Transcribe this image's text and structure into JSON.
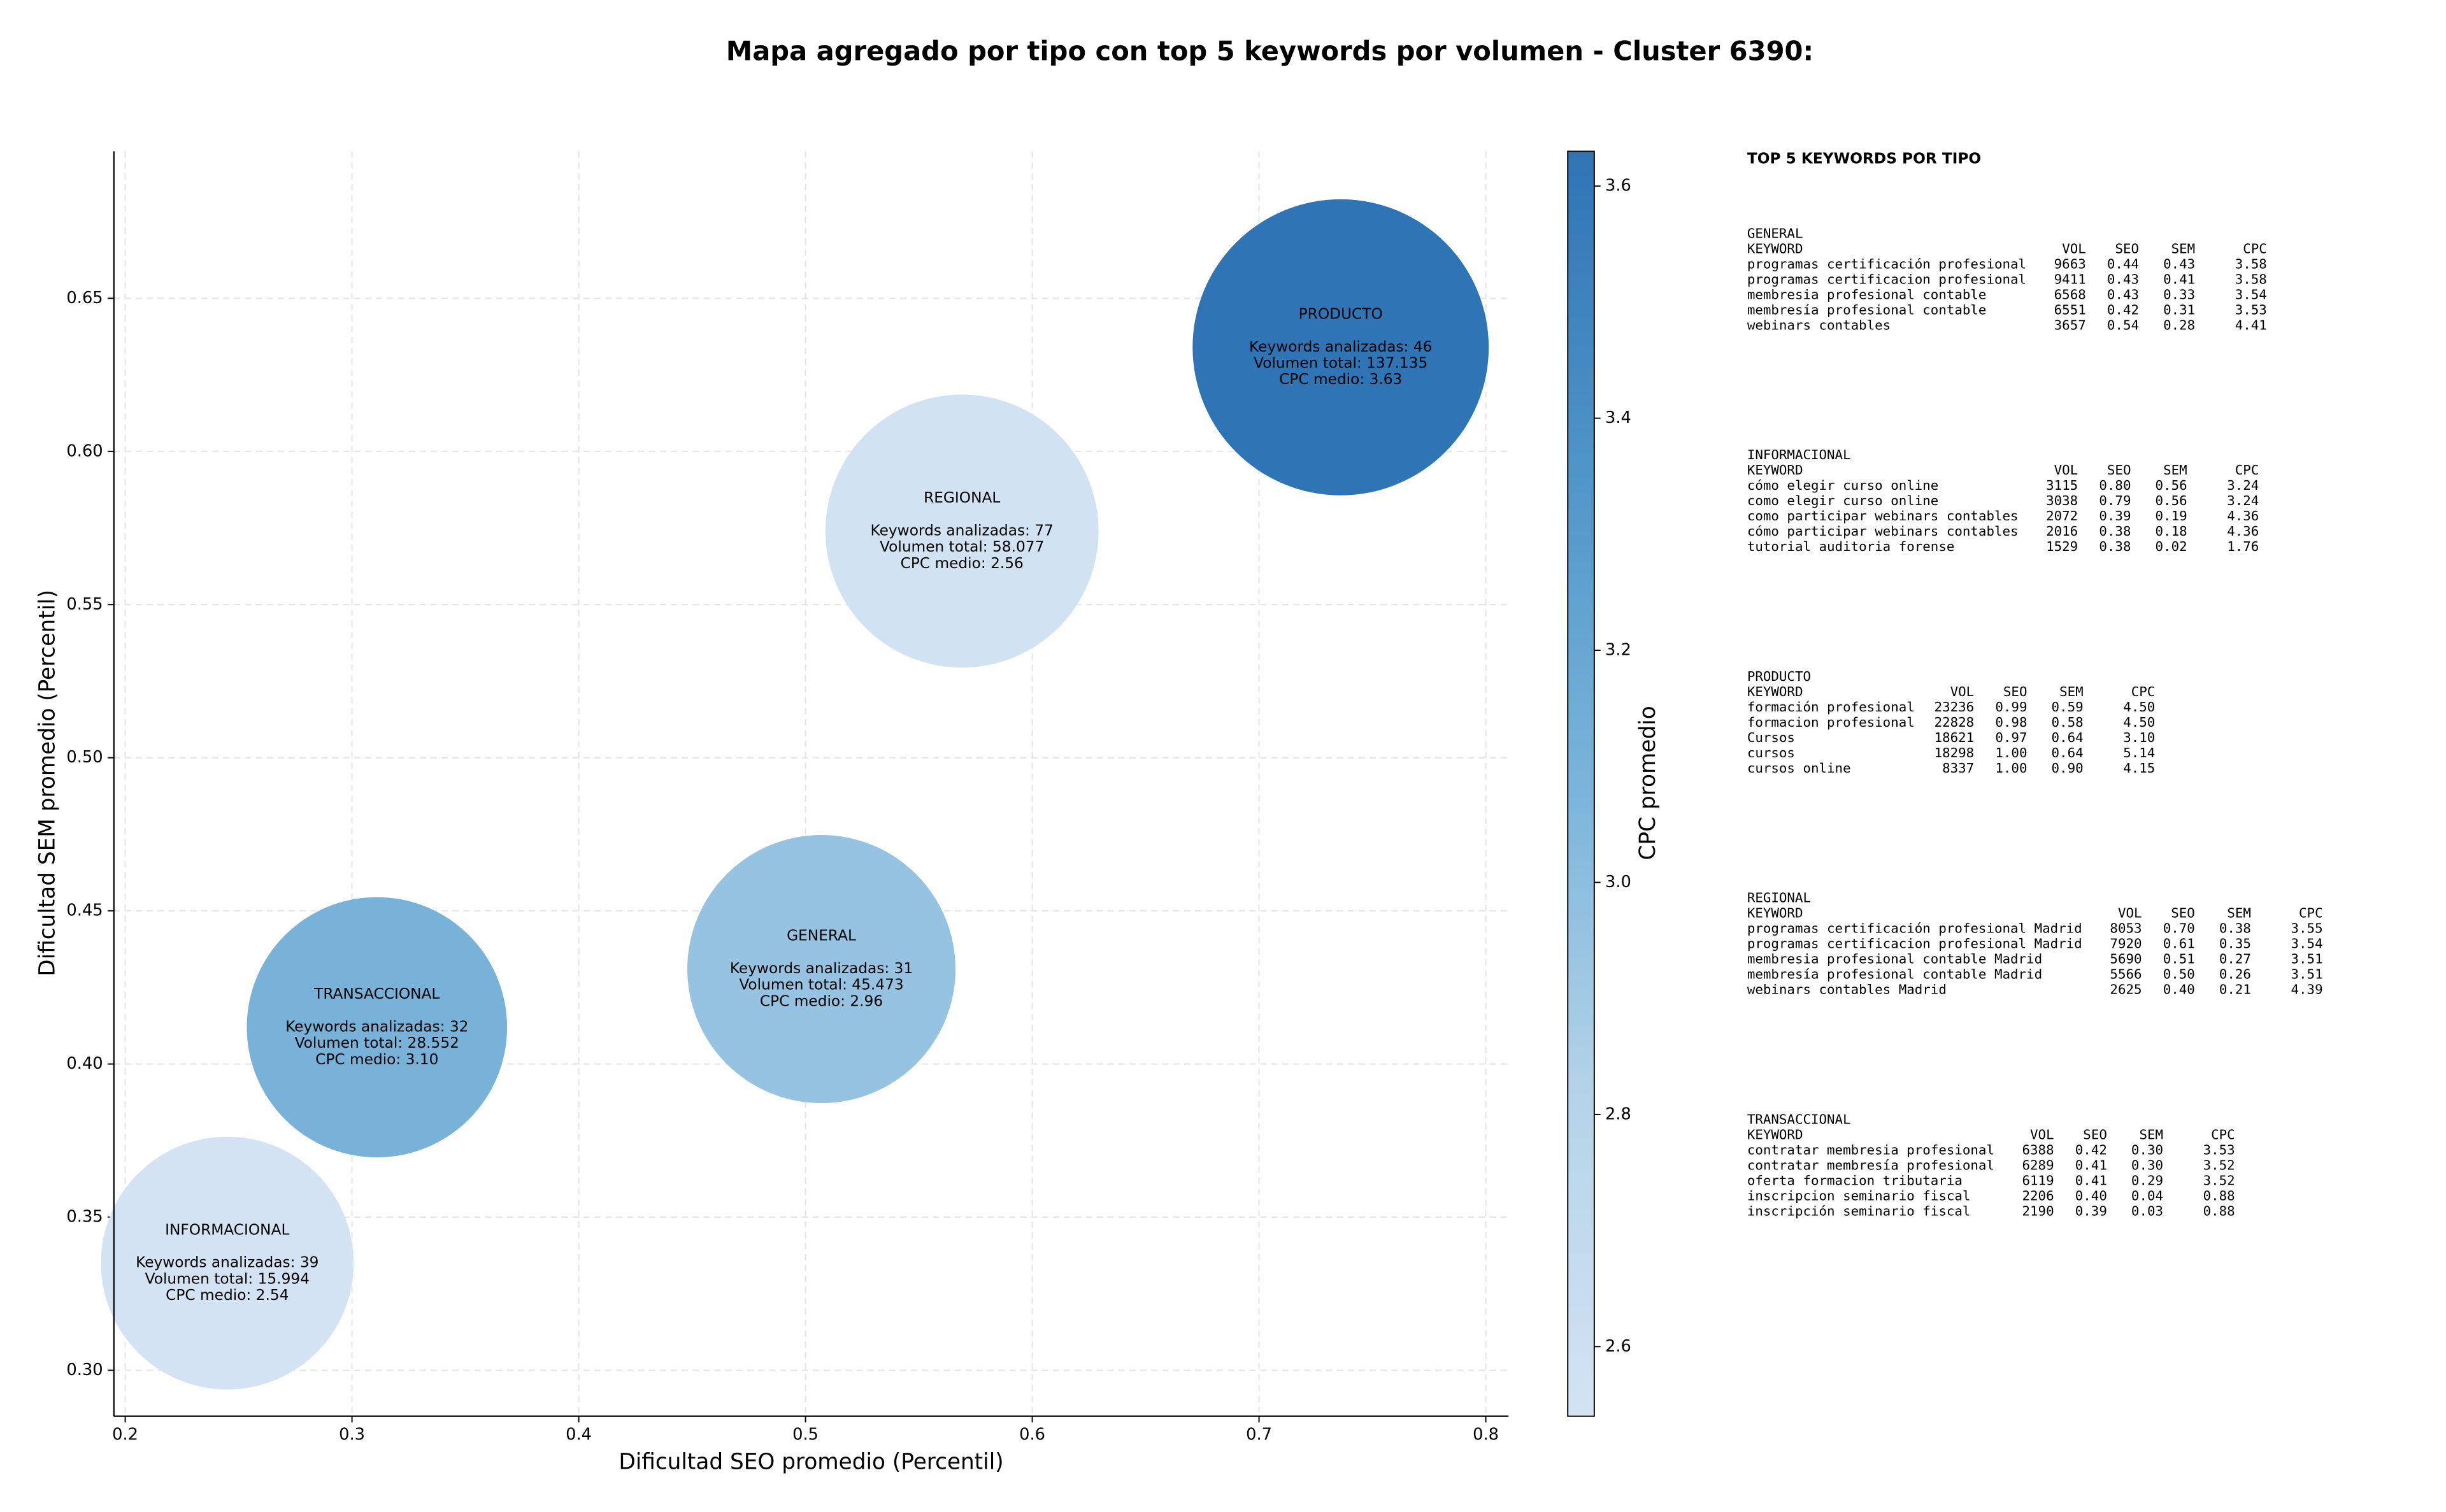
{
  "chart_data": {
    "type": "scatter",
    "title": "Mapa agregado por tipo con top 5 keywords por volumen - Cluster 6390:",
    "xlabel": "Dificultad SEO promedio (Percentil)",
    "ylabel": "Dificultad SEM promedio (Percentil)",
    "xlim": [
      0.195,
      0.81
    ],
    "ylim": [
      0.285,
      0.698
    ],
    "xticks": [
      0.2,
      0.3,
      0.4,
      0.5,
      0.6,
      0.7,
      0.8
    ],
    "yticks": [
      {
        "value": 0.3,
        "label": "0.30"
      },
      0.35,
      {
        "value": 0.4,
        "label": "0.40"
      },
      0.45,
      {
        "value": 0.5,
        "label": "0.50"
      },
      0.55,
      {
        "value": 0.6,
        "label": "0.60"
      },
      0.65
    ],
    "grid": true,
    "categories": [
      "GENERAL",
      "INFORMACIONAL",
      "PRODUCTO",
      "REGIONAL",
      "TRANSACCIONAL"
    ],
    "x": [
      0.507,
      0.245,
      0.736,
      0.569,
      0.311
    ],
    "values": [
      0.431,
      0.335,
      0.634,
      0.574,
      0.412
    ],
    "sizes": [
      45473,
      15994,
      137135,
      58077,
      28552
    ],
    "cpc": [
      2.96,
      2.54,
      3.63,
      2.56,
      3.1
    ],
    "annotations": [
      [
        "Keywords analizadas: 31",
        "Volumen total: 45.473",
        "CPC medio: 2.96"
      ],
      [
        "Keywords analizadas: 39",
        "Volumen total: 15.994",
        "CPC medio: 2.54"
      ],
      [
        "Keywords analizadas: 46",
        "Volumen total: 137.135",
        "CPC medio: 3.63"
      ],
      [
        "Keywords analizadas: 77",
        "Volumen total: 58.077",
        "CPC medio: 2.56"
      ],
      [
        "Keywords analizadas: 32",
        "Volumen total: 28.552",
        "CPC medio: 3.10"
      ]
    ],
    "colorbar": {
      "label": "CPC promedio",
      "lim": [
        2.54,
        3.63
      ],
      "ticks": [
        2.6,
        2.8,
        {
          "value": 3,
          "label": "3.0"
        },
        3.2,
        3.4,
        3.6
      ],
      "colormap": [
        "#d3e3f3",
        "#b5d4e9",
        "#7ab4da",
        "#4e95c8",
        "#2f74b5"
      ]
    }
  },
  "table": {
    "title": "TOP 5 KEYWORDS POR TIPO",
    "columns": [
      "KEYWORD",
      "VOL",
      "SEO",
      "SEM",
      "CPC"
    ],
    "sections": [
      {
        "name": "GENERAL",
        "rows": [
          [
            "programas certificación profesional",
            "9663",
            "0.44",
            "0.43",
            "3.58"
          ],
          [
            "programas certificacion profesional",
            "9411",
            "0.43",
            "0.41",
            "3.58"
          ],
          [
            "membresia profesional contable",
            "6568",
            "0.43",
            "0.33",
            "3.54"
          ],
          [
            "membresía profesional contable",
            "6551",
            "0.42",
            "0.31",
            "3.53"
          ],
          [
            "webinars contables",
            "3657",
            "0.54",
            "0.28",
            "4.41"
          ]
        ]
      },
      {
        "name": "INFORMACIONAL",
        "rows": [
          [
            "cómo elegir curso online",
            "3115",
            "0.80",
            "0.56",
            "3.24"
          ],
          [
            "como elegir curso online",
            "3038",
            "0.79",
            "0.56",
            "3.24"
          ],
          [
            "como participar webinars contables",
            "2072",
            "0.39",
            "0.19",
            "4.36"
          ],
          [
            "cómo participar webinars contables",
            "2016",
            "0.38",
            "0.18",
            "4.36"
          ],
          [
            "tutorial auditoria forense",
            "1529",
            "0.38",
            "0.02",
            "1.76"
          ]
        ]
      },
      {
        "name": "PRODUCTO",
        "rows": [
          [
            "formación profesional",
            "23236",
            "0.99",
            "0.59",
            "4.50"
          ],
          [
            "formacion profesional",
            "22828",
            "0.98",
            "0.58",
            "4.50"
          ],
          [
            "Cursos",
            "18621",
            "0.97",
            "0.64",
            "3.10"
          ],
          [
            "cursos",
            "18298",
            "1.00",
            "0.64",
            "5.14"
          ],
          [
            "cursos online",
            "8337",
            "1.00",
            "0.90",
            "4.15"
          ]
        ]
      },
      {
        "name": "REGIONAL",
        "rows": [
          [
            "programas certificación profesional Madrid",
            "8053",
            "0.70",
            "0.38",
            "3.55"
          ],
          [
            "programas certificacion profesional Madrid",
            "7920",
            "0.61",
            "0.35",
            "3.54"
          ],
          [
            "membresia profesional contable Madrid",
            "5690",
            "0.51",
            "0.27",
            "3.51"
          ],
          [
            "membresía profesional contable Madrid",
            "5566",
            "0.50",
            "0.26",
            "3.51"
          ],
          [
            "webinars contables Madrid",
            "2625",
            "0.40",
            "0.21",
            "4.39"
          ]
        ]
      },
      {
        "name": "TRANSACCIONAL",
        "rows": [
          [
            "contratar membresia profesional",
            "6388",
            "0.42",
            "0.30",
            "3.53"
          ],
          [
            "contratar membresía profesional",
            "6289",
            "0.41",
            "0.30",
            "3.52"
          ],
          [
            "oferta formacion tributaria",
            "6119",
            "0.41",
            "0.29",
            "3.52"
          ],
          [
            "inscripcion seminario fiscal",
            "2206",
            "0.40",
            "0.04",
            "0.88"
          ],
          [
            "inscripción seminario fiscal",
            "2190",
            "0.39",
            "0.03",
            "0.88"
          ]
        ]
      }
    ]
  }
}
